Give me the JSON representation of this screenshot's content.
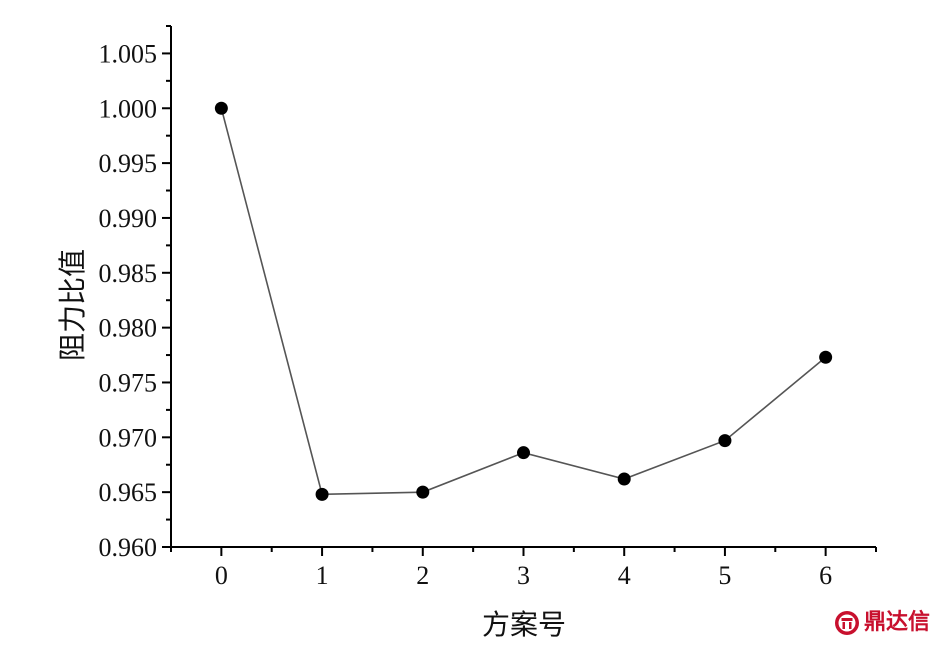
{
  "chart_data": {
    "type": "line",
    "x": [
      0,
      1,
      2,
      3,
      4,
      5,
      6
    ],
    "series": [
      {
        "values": [
          1.0,
          0.9648,
          0.965,
          0.9686,
          0.9662,
          0.9697,
          0.9773
        ]
      }
    ],
    "xlabel": "方案号",
    "ylabel": "阻力比值",
    "xlim": [
      -0.5,
      6.5
    ],
    "ylim": [
      0.96,
      1.0075
    ],
    "xticks": [
      0,
      1,
      2,
      3,
      4,
      5,
      6
    ],
    "xtick_labels": [
      "0",
      "1",
      "2",
      "3",
      "4",
      "5",
      "6"
    ],
    "yticks": [
      0.96,
      0.965,
      0.97,
      0.975,
      0.98,
      0.985,
      0.99,
      0.995,
      1.0,
      1.005
    ],
    "ytick_labels": [
      "0.960",
      "0.965",
      "0.970",
      "0.975",
      "0.980",
      "0.985",
      "0.990",
      "0.995",
      "1.000",
      "1.005"
    ],
    "grid": false,
    "colors": {
      "line": "#555555",
      "marker": "#000000",
      "axis": "#000000"
    }
  },
  "watermark": {
    "text": "鼎达信",
    "color": "#c8102e",
    "icon": "dingdaxin-logo-icon"
  }
}
